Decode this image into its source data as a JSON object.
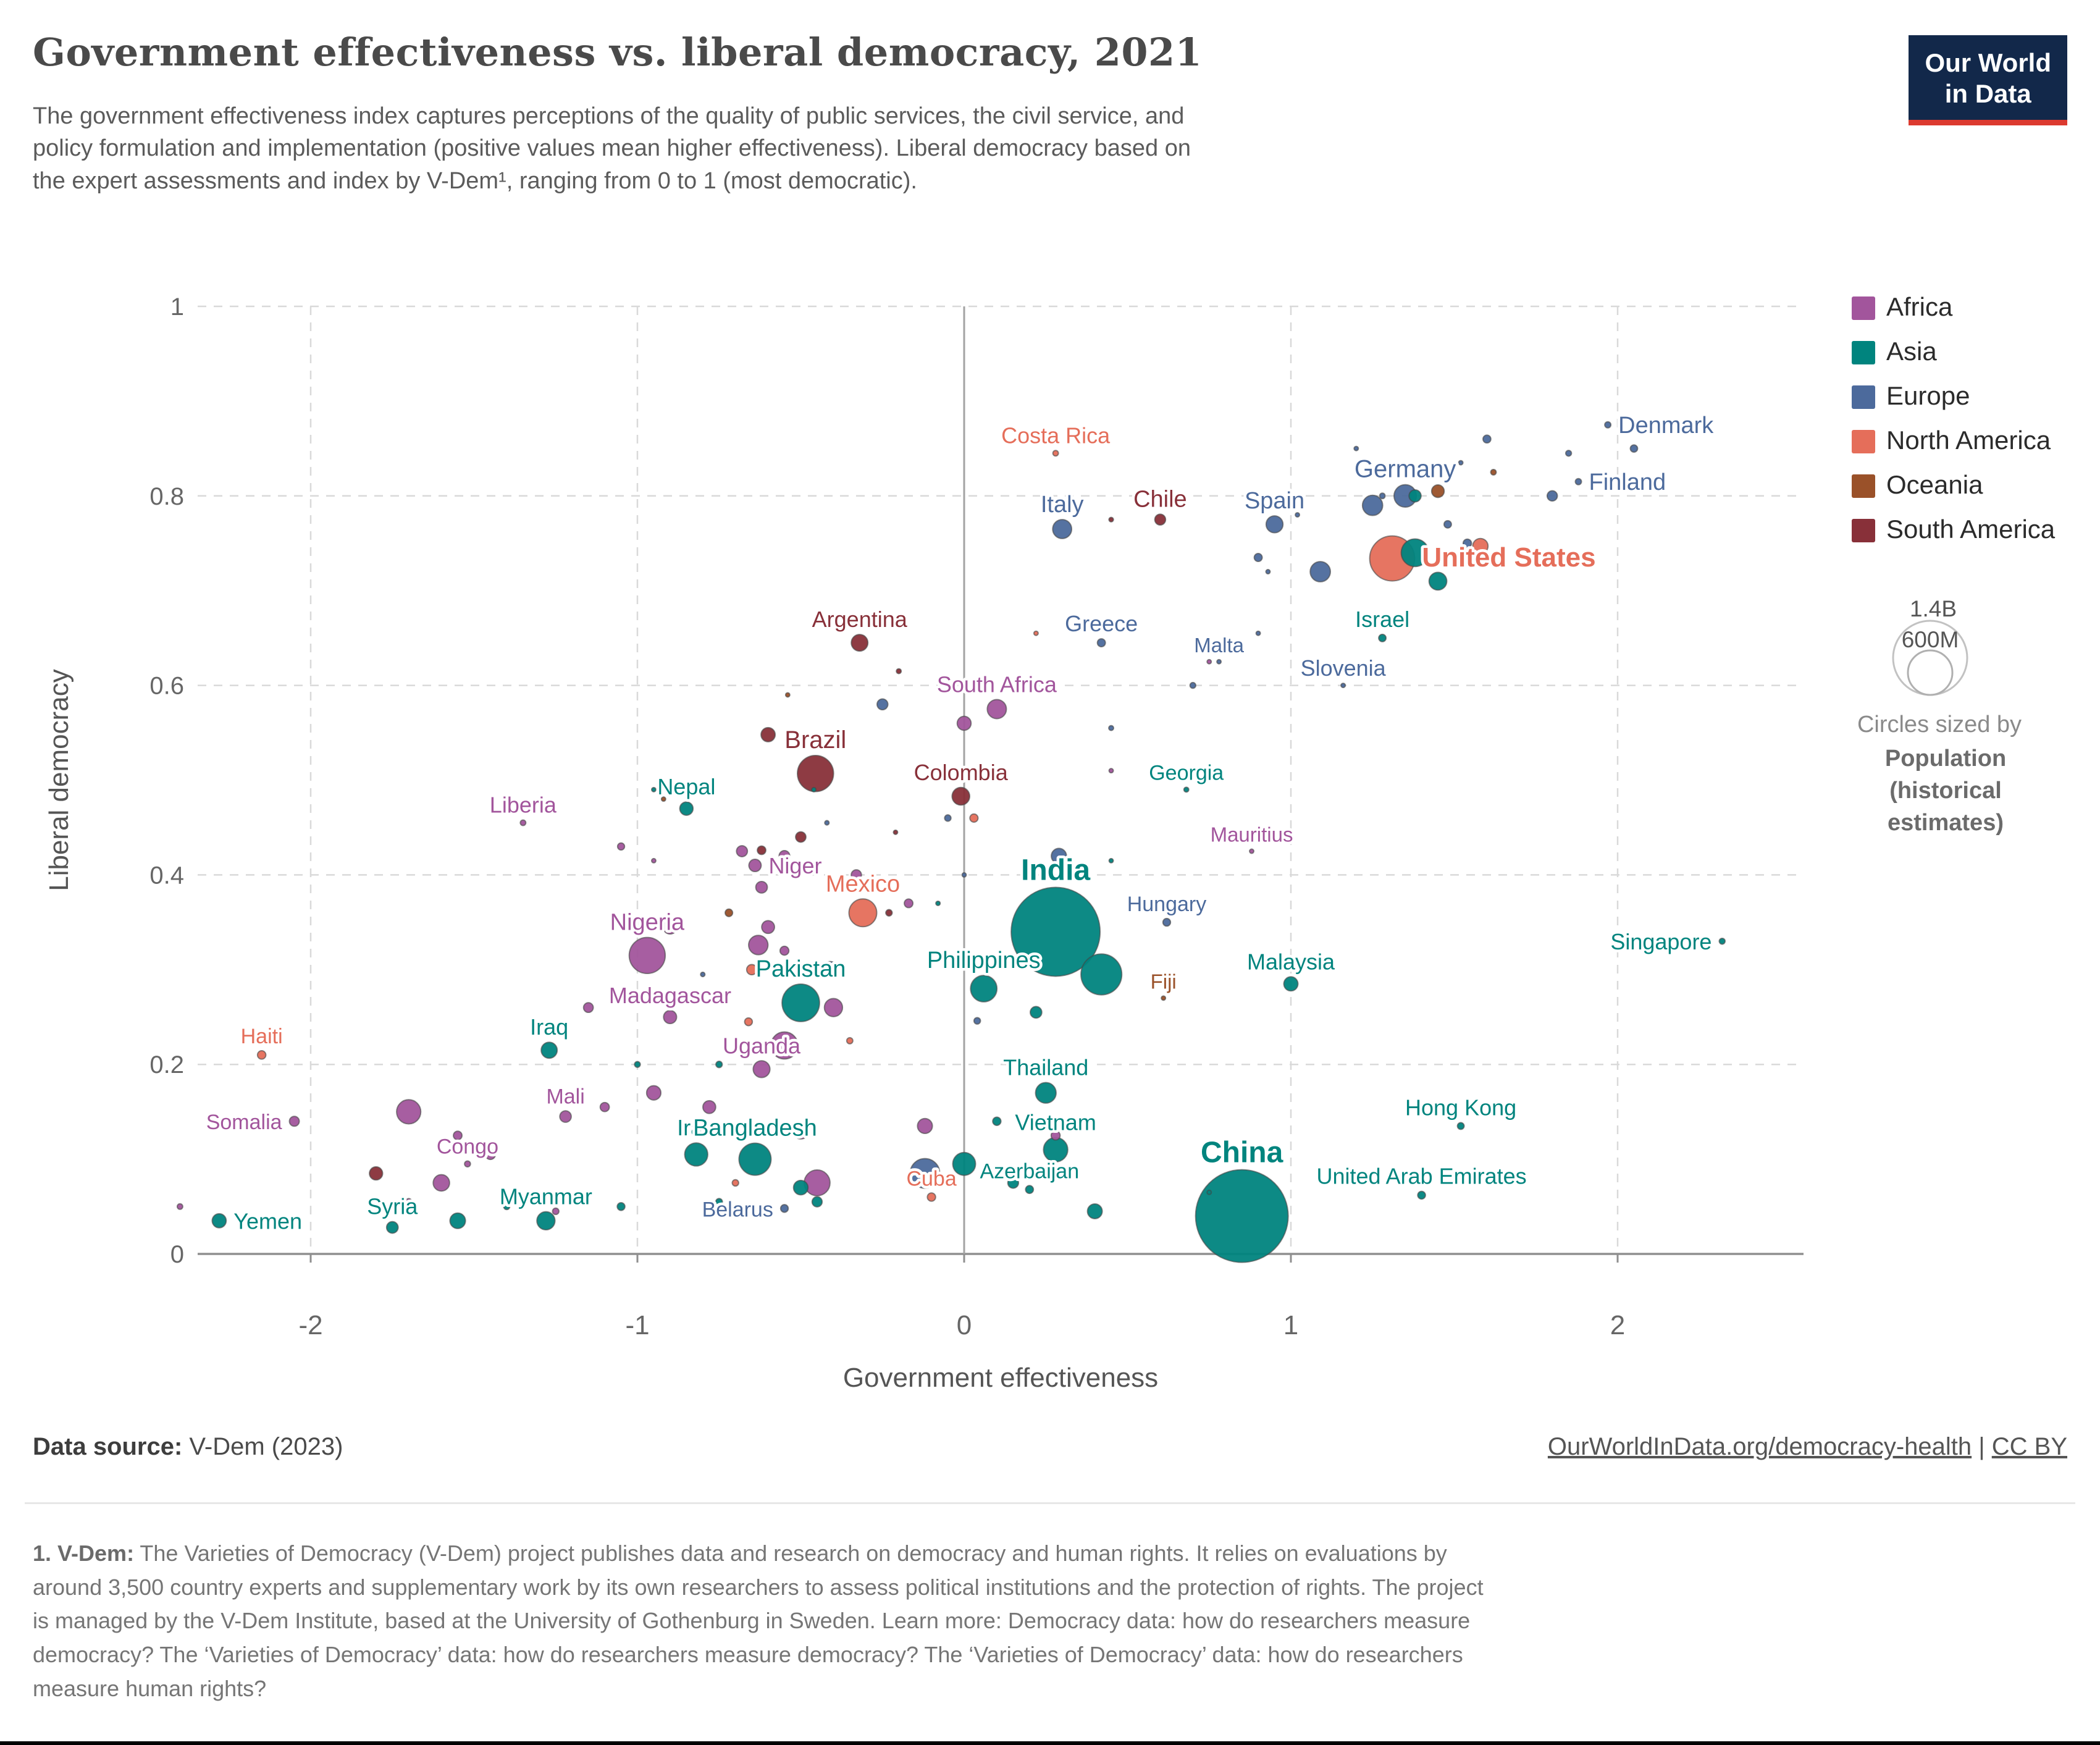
{
  "header": {
    "title": "Government effectiveness vs. liberal democracy, 2021",
    "logo": {
      "line1": "Our World",
      "line2": "in Data"
    }
  },
  "subtitle": {
    "line1": "The government effectiveness index captures perceptions of the quality of public services, the civil service, and",
    "line2": "policy formulation and implementation (positive values mean higher effectiveness). Liberal democracy based on",
    "line3": "the expert assessments and index by V-Dem¹, ranging from 0 to 1 (most democratic)."
  },
  "footer": {
    "datasource_label": "Data source:",
    "datasource_value": " V-Dem (2023)",
    "url": "OurWorldInData.org/democracy-health",
    "separator": " | ",
    "license": "CC BY"
  },
  "footnote": {
    "bold": "1. V-Dem:",
    "lines": [
      " The Varieties of Democracy (V-Dem) project publishes data and research on democracy and human rights. It relies on evaluations by",
      "around 3,500 country experts and supplementary work by its own researchers to assess political institutions and the protection of rights. The project",
      "is managed by the V-Dem Institute, based at the University of Gothenburg in Sweden. Learn more: Democracy data: how do researchers measure",
      "democracy? The ‘Varieties of Democracy’ data: how do researchers measure democracy? The ‘Varieties of Democracy’ data: how do researchers",
      "measure human rights?"
    ]
  },
  "chart_data": {
    "type": "scatter",
    "title": "Government effectiveness vs. liberal democracy, 2021",
    "xlabel": "Government effectiveness",
    "ylabel": "Liberal democracy",
    "xlim": [
      -2.55,
      2.45
    ],
    "ylim": [
      0,
      1
    ],
    "xticks": [
      -2,
      -1,
      0,
      1,
      2
    ],
    "yticks": [
      0,
      0.2,
      0.4,
      0.6,
      0.8,
      1
    ],
    "grid": true,
    "legend_position": "right",
    "continents": [
      {
        "code": "AF",
        "name": "Africa",
        "color": "#a2559c"
      },
      {
        "code": "AS",
        "name": "Asia",
        "color": "#00847e"
      },
      {
        "code": "EU",
        "name": "Europe",
        "color": "#4c6a9c"
      },
      {
        "code": "NA",
        "name": "North America",
        "color": "#e56e5a"
      },
      {
        "code": "OC",
        "name": "Oceania",
        "color": "#9a5129"
      },
      {
        "code": "SA",
        "name": "South America",
        "color": "#883039"
      }
    ],
    "size_legend": {
      "big_label": "1.4B",
      "small_label": "600M",
      "caption": "Circles sized by",
      "bold_lines": [
        "Population",
        "(historical",
        "estimates)"
      ]
    },
    "points": [
      {
        "n": "Denmark",
        "c": "EU",
        "x": 1.97,
        "y": 0.875,
        "r": 5,
        "lp": "r",
        "ls": 38
      },
      {
        "n": "Finland",
        "c": "EU",
        "x": 1.88,
        "y": 0.815,
        "r": 5,
        "lp": "r",
        "ls": 38
      },
      {
        "n": "Germany",
        "c": "EU",
        "x": 1.35,
        "y": 0.8,
        "r": 18.2,
        "lp": "a",
        "ls": 40
      },
      {
        "n": "Costa Rica",
        "c": "NA",
        "x": 0.28,
        "y": 0.845,
        "r": 4.5,
        "lp": "a",
        "ls": 36
      },
      {
        "n": "Italy",
        "c": "EU",
        "x": 0.3,
        "y": 0.765,
        "r": 15.4,
        "lp": "a",
        "ls": 38
      },
      {
        "n": "Chile",
        "c": "SA",
        "x": 0.6,
        "y": 0.775,
        "r": 8.8,
        "lp": "a",
        "ls": 38
      },
      {
        "n": "Spain",
        "c": "EU",
        "x": 0.95,
        "y": 0.77,
        "r": 13.7,
        "lp": "a",
        "ls": 38
      },
      {
        "n": "United States",
        "c": "NA",
        "x": 1.31,
        "y": 0.734,
        "r": 36.4,
        "lp": "r",
        "ls": 44
      },
      {
        "n": "Greece",
        "c": "EU",
        "x": 0.42,
        "y": 0.645,
        "r": 6.5,
        "lp": "a",
        "ls": 36
      },
      {
        "n": "Malta",
        "c": "EU",
        "x": 0.78,
        "y": 0.625,
        "r": 3.5,
        "lp": "a",
        "ls": 33
      },
      {
        "n": "Israel",
        "c": "AS",
        "x": 1.28,
        "y": 0.65,
        "r": 6,
        "lp": "a",
        "ls": 36
      },
      {
        "n": "Slovenia",
        "c": "EU",
        "x": 1.16,
        "y": 0.6,
        "r": 3.5,
        "lp": "a",
        "ls": 36
      },
      {
        "n": "Argentina",
        "c": "SA",
        "x": -0.32,
        "y": 0.645,
        "r": 13.5,
        "lp": "a",
        "ls": 36
      },
      {
        "n": "South Africa",
        "c": "AF",
        "x": 0.1,
        "y": 0.575,
        "r": 15.5,
        "lp": "a",
        "ls": 36
      },
      {
        "n": "Brazil",
        "c": "SA",
        "x": -0.455,
        "y": 0.507,
        "r": 29.3,
        "lp": "a",
        "ls": 40
      },
      {
        "n": "Nepal",
        "c": "AS",
        "x": -0.85,
        "y": 0.47,
        "r": 10.8,
        "lp": "a",
        "ls": 36
      },
      {
        "n": "Liberia",
        "c": "AF",
        "x": -1.35,
        "y": 0.455,
        "r": 4.5,
        "lp": "a",
        "ls": 36
      },
      {
        "n": "Colombia",
        "c": "SA",
        "x": -0.01,
        "y": 0.483,
        "r": 14.3,
        "lp": "a",
        "ls": 36
      },
      {
        "n": "Georgia",
        "c": "AS",
        "x": 0.68,
        "y": 0.49,
        "r": 4,
        "lp": "a",
        "ls": 34
      },
      {
        "n": "Mauritius",
        "c": "AF",
        "x": 0.88,
        "y": 0.425,
        "r": 3.5,
        "lp": "a",
        "ls": 33
      },
      {
        "n": "Niger",
        "c": "AF",
        "x": -0.64,
        "y": 0.41,
        "r": 10,
        "lp": "r",
        "ls": 36
      },
      {
        "n": "Mexico",
        "c": "NA",
        "x": -0.31,
        "y": 0.36,
        "r": 22.5,
        "lp": "a",
        "ls": 38
      },
      {
        "n": "India",
        "c": "AS",
        "x": 0.28,
        "y": 0.34,
        "r": 72,
        "lp": "a",
        "ls": 48
      },
      {
        "n": "Hungary",
        "c": "EU",
        "x": 0.62,
        "y": 0.35,
        "r": 6.2,
        "lp": "a",
        "ls": 34
      },
      {
        "n": "Singapore",
        "c": "AS",
        "x": 2.32,
        "y": 0.33,
        "r": 4.8,
        "lp": "l",
        "ls": 36
      },
      {
        "n": "Nigeria",
        "c": "AF",
        "x": -0.97,
        "y": 0.315,
        "r": 29.2,
        "lp": "a",
        "ls": 38
      },
      {
        "n": "Philippines",
        "c": "AS",
        "x": 0.06,
        "y": 0.28,
        "r": 21.4,
        "lp": "a",
        "ls": 38
      },
      {
        "n": "Fiji",
        "c": "OC",
        "x": 0.61,
        "y": 0.27,
        "r": 3.5,
        "lp": "a",
        "ls": 33
      },
      {
        "n": "Malaysia",
        "c": "AS",
        "x": 1.0,
        "y": 0.285,
        "r": 11.5,
        "lp": "a",
        "ls": 36
      },
      {
        "n": "Pakistan",
        "c": "AS",
        "x": -0.5,
        "y": 0.265,
        "r": 30.4,
        "lp": "a",
        "ls": 38
      },
      {
        "n": "Madagascar",
        "c": "AF",
        "x": -0.9,
        "y": 0.25,
        "r": 10.6,
        "lp": "a",
        "ls": 36
      },
      {
        "n": "Iraq",
        "c": "AS",
        "x": -1.27,
        "y": 0.215,
        "r": 13,
        "lp": "a",
        "ls": 36
      },
      {
        "n": "Haiti",
        "c": "NA",
        "x": -2.15,
        "y": 0.21,
        "r": 6.8,
        "lp": "a",
        "ls": 34
      },
      {
        "n": "Uganda",
        "c": "AF",
        "x": -0.62,
        "y": 0.195,
        "r": 13.6,
        "lp": "a",
        "ls": 36
      },
      {
        "n": "Mali",
        "c": "AF",
        "x": -1.22,
        "y": 0.145,
        "r": 9.3,
        "lp": "a",
        "ls": 34
      },
      {
        "n": "Thailand",
        "c": "AS",
        "x": 0.25,
        "y": 0.17,
        "r": 16.7,
        "lp": "a",
        "ls": 36
      },
      {
        "n": "Hong Kong",
        "c": "AS",
        "x": 1.52,
        "y": 0.135,
        "r": 5.5,
        "lp": "a",
        "ls": 36
      },
      {
        "n": "Iran",
        "c": "AS",
        "x": -0.82,
        "y": 0.105,
        "r": 18.7,
        "lp": "a",
        "ls": 36
      },
      {
        "n": "Bangladesh",
        "c": "AS",
        "x": -0.64,
        "y": 0.1,
        "r": 26,
        "lp": "a",
        "ls": 38
      },
      {
        "n": "Vietnam",
        "c": "AS",
        "x": 0.28,
        "y": 0.11,
        "r": 19.7,
        "lp": "a",
        "ls": 36
      },
      {
        "n": "Somalia",
        "c": "AF",
        "x": -2.05,
        "y": 0.14,
        "r": 8,
        "lp": "l",
        "ls": 34
      },
      {
        "n": "Congo",
        "c": "AF",
        "x": -1.52,
        "y": 0.095,
        "r": 4.8,
        "lp": "a",
        "ls": 34
      },
      {
        "n": "Azerbaijan",
        "c": "AS",
        "x": 0.2,
        "y": 0.068,
        "r": 6.4,
        "lp": "a",
        "ls": 34
      },
      {
        "n": "China",
        "c": "AS",
        "x": 0.85,
        "y": 0.04,
        "r": 75,
        "lp": "a",
        "ls": 48
      },
      {
        "n": "United Arab Emirates",
        "c": "AS",
        "x": 1.4,
        "y": 0.062,
        "r": 6.3,
        "lp": "a",
        "ls": 36
      },
      {
        "n": "Cuba",
        "c": "NA",
        "x": -0.1,
        "y": 0.06,
        "r": 6.7,
        "lp": "a",
        "ls": 34
      },
      {
        "n": "Belarus",
        "c": "EU",
        "x": -0.55,
        "y": 0.048,
        "r": 6.2,
        "lp": "l",
        "ls": 34
      },
      {
        "n": "Myanmar",
        "c": "AS",
        "x": -1.28,
        "y": 0.035,
        "r": 14.7,
        "lp": "a",
        "ls": 36
      },
      {
        "n": "Syria",
        "c": "AS",
        "x": -1.75,
        "y": 0.028,
        "r": 9.4,
        "lp": "a",
        "ls": 36
      },
      {
        "n": "Yemen",
        "c": "AS",
        "x": -2.28,
        "y": 0.035,
        "r": 11.4,
        "lp": "r",
        "ls": 36
      },
      {
        "c": "EU",
        "x": 1.6,
        "y": 0.86,
        "r": 6.4
      },
      {
        "c": "EU",
        "x": 1.85,
        "y": 0.845,
        "r": 4.7
      },
      {
        "c": "EU",
        "x": 2.05,
        "y": 0.85,
        "r": 5.9
      },
      {
        "c": "EU",
        "x": 1.8,
        "y": 0.8,
        "r": 8.3
      },
      {
        "c": "EU",
        "x": 1.48,
        "y": 0.77,
        "r": 6
      },
      {
        "c": "EU",
        "x": 1.28,
        "y": 0.8,
        "r": 4.5
      },
      {
        "c": "EU",
        "x": 1.25,
        "y": 0.79,
        "r": 16.4
      },
      {
        "c": "EU",
        "x": 1.09,
        "y": 0.72,
        "r": 16.4
      },
      {
        "c": "EU",
        "x": 1.0,
        "y": 0.795,
        "r": 6.4
      },
      {
        "c": "EU",
        "x": 1.2,
        "y": 0.85,
        "r": 3.5
      },
      {
        "c": "EU",
        "x": 0.9,
        "y": 0.735,
        "r": 6.5
      },
      {
        "c": "EU",
        "x": 1.02,
        "y": 0.78,
        "r": 3.5
      },
      {
        "c": "EU",
        "x": 0.93,
        "y": 0.72,
        "r": 3.5
      },
      {
        "c": "EU",
        "x": 1.52,
        "y": 0.835,
        "r": 3.5
      },
      {
        "c": "EU",
        "x": 1.54,
        "y": 0.75,
        "r": 6.8
      },
      {
        "c": "EU",
        "x": 0.29,
        "y": 0.42,
        "r": 12.3
      },
      {
        "c": "EU",
        "x": 0.7,
        "y": 0.6,
        "r": 4.7
      },
      {
        "c": "EU",
        "x": 0.45,
        "y": 0.555,
        "r": 4
      },
      {
        "c": "EU",
        "x": -0.25,
        "y": 0.58,
        "r": 8.8
      },
      {
        "c": "EU",
        "x": -0.05,
        "y": 0.46,
        "r": 5.2
      },
      {
        "c": "EU",
        "x": 0.04,
        "y": 0.246,
        "r": 5.3
      },
      {
        "c": "EU",
        "x": 0.0,
        "y": 0.4,
        "r": 3.5
      },
      {
        "c": "EU",
        "x": -0.42,
        "y": 0.455,
        "r": 3.6
      },
      {
        "c": "EU",
        "x": -0.41,
        "y": 0.3,
        "r": 13.2
      },
      {
        "c": "EU",
        "x": -0.8,
        "y": 0.295,
        "r": 3.6
      },
      {
        "c": "EU",
        "x": 0.9,
        "y": 0.655,
        "r": 3.5
      },
      {
        "c": "EU",
        "x": -0.12,
        "y": 0.085,
        "r": 24
      },
      {
        "c": "AS",
        "x": 1.38,
        "y": 0.74,
        "r": 22.4
      },
      {
        "c": "AS",
        "x": 1.45,
        "y": 0.71,
        "r": 14.4
      },
      {
        "c": "AS",
        "x": 1.38,
        "y": 0.8,
        "r": 9.8
      },
      {
        "c": "AS",
        "x": 0.42,
        "y": 0.295,
        "r": 33.1
      },
      {
        "c": "AS",
        "x": 0.22,
        "y": 0.255,
        "r": 9.4
      },
      {
        "c": "AS",
        "x": -0.08,
        "y": 0.37,
        "r": 3.6
      },
      {
        "c": "AS",
        "x": -0.95,
        "y": 0.49,
        "r": 3.5
      },
      {
        "c": "AS",
        "x": 0.15,
        "y": 0.075,
        "r": 8.7
      },
      {
        "c": "AS",
        "x": 0.4,
        "y": 0.045,
        "r": 12
      },
      {
        "c": "AS",
        "x": 0.75,
        "y": 0.065,
        "r": 3.5
      },
      {
        "c": "AS",
        "x": 0.1,
        "y": 0.14,
        "r": 6.7
      },
      {
        "c": "AS",
        "x": -0.45,
        "y": 0.055,
        "r": 8.2
      },
      {
        "c": "AS",
        "x": -0.75,
        "y": 0.055,
        "r": 5.4
      },
      {
        "c": "AS",
        "x": -0.5,
        "y": 0.07,
        "r": 11.8
      },
      {
        "c": "AS",
        "x": -1.05,
        "y": 0.05,
        "r": 6.3
      },
      {
        "c": "AS",
        "x": -1.4,
        "y": 0.05,
        "r": 5
      },
      {
        "c": "AS",
        "x": -1.55,
        "y": 0.035,
        "r": 12.6
      },
      {
        "c": "AS",
        "x": 0.0,
        "y": 0.095,
        "r": 18.5
      },
      {
        "c": "AS",
        "x": -0.75,
        "y": 0.2,
        "r": 5.2
      },
      {
        "c": "AS",
        "x": -0.46,
        "y": 0.49,
        "r": 3.5
      },
      {
        "c": "AS",
        "x": 0.45,
        "y": 0.415,
        "r": 3.5
      },
      {
        "c": "AS",
        "x": -1.0,
        "y": 0.2,
        "r": 4.7
      },
      {
        "c": "NA",
        "x": 1.58,
        "y": 0.747,
        "r": 12.4
      },
      {
        "c": "NA",
        "x": 0.45,
        "y": 0.66,
        "r": 3.5
      },
      {
        "c": "NA",
        "x": 0.03,
        "y": 0.46,
        "r": 6.6
      },
      {
        "c": "NA",
        "x": -0.65,
        "y": 0.3,
        "r": 8.3
      },
      {
        "c": "NA",
        "x": -0.66,
        "y": 0.245,
        "r": 6.3
      },
      {
        "c": "NA",
        "x": -0.7,
        "y": 0.075,
        "r": 5.2
      },
      {
        "c": "NA",
        "x": -0.35,
        "y": 0.225,
        "r": 5
      },
      {
        "c": "NA",
        "x": 0.18,
        "y": 0.6,
        "r": 4.2
      },
      {
        "c": "NA",
        "x": 0.22,
        "y": 0.655,
        "r": 3.5
      },
      {
        "c": "SA",
        "x": 0.45,
        "y": 0.775,
        "r": 3.7
      },
      {
        "c": "SA",
        "x": -0.6,
        "y": 0.548,
        "r": 11.5
      },
      {
        "c": "SA",
        "x": -0.5,
        "y": 0.44,
        "r": 8.4
      },
      {
        "c": "SA",
        "x": -0.62,
        "y": 0.426,
        "r": 6.9
      },
      {
        "c": "SA",
        "x": -0.23,
        "y": 0.36,
        "r": 5.2
      },
      {
        "c": "SA",
        "x": -1.8,
        "y": 0.085,
        "r": 10.7
      },
      {
        "c": "SA",
        "x": -0.21,
        "y": 0.445,
        "r": 3.5
      },
      {
        "c": "SA",
        "x": -0.2,
        "y": 0.615,
        "r": 4
      },
      {
        "c": "OC",
        "x": 1.45,
        "y": 0.805,
        "r": 10.2
      },
      {
        "c": "OC",
        "x": 1.62,
        "y": 0.825,
        "r": 4.5
      },
      {
        "c": "OC",
        "x": -0.72,
        "y": 0.36,
        "r": 6.1
      },
      {
        "c": "OC",
        "x": -0.92,
        "y": 0.48,
        "r": 3.5
      },
      {
        "c": "OC",
        "x": -0.54,
        "y": 0.59,
        "r": 3.5
      },
      {
        "c": "AF",
        "x": -0.33,
        "y": 0.4,
        "r": 8.3
      },
      {
        "c": "AF",
        "x": 0.0,
        "y": 0.56,
        "r": 11.3
      },
      {
        "c": "AF",
        "x": 0.45,
        "y": 0.51,
        "r": 3.5
      },
      {
        "c": "AF",
        "x": -0.55,
        "y": 0.42,
        "r": 8.7
      },
      {
        "c": "AF",
        "x": -0.68,
        "y": 0.425,
        "r": 8.9
      },
      {
        "c": "AF",
        "x": -1.05,
        "y": 0.43,
        "r": 5.7
      },
      {
        "c": "AF",
        "x": -0.62,
        "y": 0.387,
        "r": 9.4
      },
      {
        "c": "AF",
        "x": -0.17,
        "y": 0.37,
        "r": 7
      },
      {
        "c": "AF",
        "x": -0.55,
        "y": 0.32,
        "r": 7.2
      },
      {
        "c": "AF",
        "x": -0.63,
        "y": 0.326,
        "r": 15.7
      },
      {
        "c": "AF",
        "x": -0.9,
        "y": 0.345,
        "r": 11.4
      },
      {
        "c": "AF",
        "x": -0.4,
        "y": 0.26,
        "r": 14.7
      },
      {
        "c": "AF",
        "x": -1.15,
        "y": 0.26,
        "r": 7.9
      },
      {
        "c": "AF",
        "x": -0.55,
        "y": 0.22,
        "r": 21.9
      },
      {
        "c": "AF",
        "x": -0.95,
        "y": 0.17,
        "r": 11.6
      },
      {
        "c": "AF",
        "x": -0.78,
        "y": 0.155,
        "r": 10.4
      },
      {
        "c": "AF",
        "x": -0.5,
        "y": 0.13,
        "r": 13.3
      },
      {
        "c": "AF",
        "x": -0.12,
        "y": 0.135,
        "r": 12.1
      },
      {
        "c": "AF",
        "x": -0.45,
        "y": 0.075,
        "r": 20.9
      },
      {
        "c": "AF",
        "x": -1.6,
        "y": 0.075,
        "r": 13.3
      },
      {
        "c": "AF",
        "x": -1.55,
        "y": 0.125,
        "r": 7
      },
      {
        "c": "AF",
        "x": -1.7,
        "y": 0.15,
        "r": 19.6
      },
      {
        "c": "AF",
        "x": 0.28,
        "y": 0.125,
        "r": 7.3
      },
      {
        "c": "AF",
        "x": -1.25,
        "y": 0.045,
        "r": 5.2
      },
      {
        "c": "AF",
        "x": -1.7,
        "y": 0.055,
        "r": 5.2
      },
      {
        "c": "AF",
        "x": 0.75,
        "y": 0.625,
        "r": 3.5
      },
      {
        "c": "AF",
        "x": -0.6,
        "y": 0.345,
        "r": 10.4
      },
      {
        "c": "AF",
        "x": -0.95,
        "y": 0.415,
        "r": 3.5
      },
      {
        "c": "AF",
        "x": -1.1,
        "y": 0.155,
        "r": 7.4
      },
      {
        "c": "AF",
        "x": -1.45,
        "y": 0.105,
        "r": 8.2
      },
      {
        "c": "AF",
        "x": -2.4,
        "y": 0.05,
        "r": 4.5
      }
    ]
  }
}
